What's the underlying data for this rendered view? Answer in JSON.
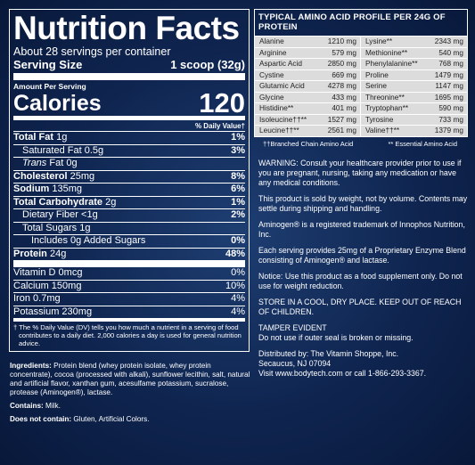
{
  "nutrition": {
    "title": "Nutrition Facts",
    "servings_per_container": "About 28 servings per container",
    "serving_size_label": "Serving Size",
    "serving_size_value": "1 scoop (32g)",
    "amount_per_serving": "Amount Per Serving",
    "calories_label": "Calories",
    "calories_value": "120",
    "dv_header": "% Daily Value†",
    "rows": [
      {
        "label": "Total Fat",
        "amount": "1g",
        "pct": "1%"
      },
      {
        "label": "Saturated Fat",
        "amount": "0.5g",
        "pct": "3%"
      },
      {
        "label": "Trans",
        "amount": "Fat 0g",
        "pct": ""
      },
      {
        "label": "Cholesterol",
        "amount": "25mg",
        "pct": "8%"
      },
      {
        "label": "Sodium",
        "amount": "135mg",
        "pct": "6%"
      },
      {
        "label": "Total Carbohydrate",
        "amount": "2g",
        "pct": "1%"
      },
      {
        "label": "Dietary Fiber",
        "amount": "<1g",
        "pct": "2%"
      },
      {
        "label": "Total Sugars",
        "amount": "1g",
        "pct": ""
      },
      {
        "label": "Includes 0g Added Sugars",
        "amount": "",
        "pct": "0%"
      },
      {
        "label": "Protein",
        "amount": "24g",
        "pct": "48%"
      },
      {
        "label": "Vitamin D",
        "amount": "0mcg",
        "pct": "0%"
      },
      {
        "label": "Calcium",
        "amount": "150mg",
        "pct": "10%"
      },
      {
        "label": "Iron",
        "amount": "0.7mg",
        "pct": "4%"
      },
      {
        "label": "Potassium",
        "amount": "230mg",
        "pct": "4%"
      }
    ],
    "footnote": "† The % Daily Value (DV) tells you how much a nutrient in a serving of food contributes to a daily diet. 2,000 calories a day is used for general nutrition advice."
  },
  "ingredients": {
    "label": "Ingredients:",
    "text": "Protein blend (whey protein isolate, whey protein concentrate), cocoa (processed with alkali), sunflower lecithin, salt, natural and artificial flavor, xanthan gum, acesulfame potassium, sucralose, protease (Aminogen®), lactase.",
    "contains_label": "Contains:",
    "contains_text": "Milk.",
    "not_contain_label": "Does not contain:",
    "not_contain_text": "Gluten, Artificial Colors."
  },
  "amino": {
    "title": "TYPICAL AMINO ACID PROFILE PER 24G OF PROTEIN",
    "rows": [
      [
        {
          "name": "Alanine",
          "value": "1210 mg"
        },
        {
          "name": "Lysine**",
          "value": "2343 mg"
        }
      ],
      [
        {
          "name": "Arginine",
          "value": "579 mg"
        },
        {
          "name": "Methionine**",
          "value": "540 mg"
        }
      ],
      [
        {
          "name": "Aspartic Acid",
          "value": "2850 mg"
        },
        {
          "name": "Phenylalanine**",
          "value": "768 mg"
        }
      ],
      [
        {
          "name": "Cystine",
          "value": "669 mg"
        },
        {
          "name": "Proline",
          "value": "1479 mg"
        }
      ],
      [
        {
          "name": "Glutamic Acid",
          "value": "4278 mg"
        },
        {
          "name": "Serine",
          "value": "1147 mg"
        }
      ],
      [
        {
          "name": "Glycine",
          "value": "433 mg"
        },
        {
          "name": "Threonine**",
          "value": "1695 mg"
        }
      ],
      [
        {
          "name": "Histidine**",
          "value": "401 mg"
        },
        {
          "name": "Tryptophan**",
          "value": "590 mg"
        }
      ],
      [
        {
          "name": "Isoleucine††**",
          "value": "1527 mg"
        },
        {
          "name": "Tyrosine",
          "value": "733 mg"
        }
      ],
      [
        {
          "name": "Leucine††**",
          "value": "2561 mg"
        },
        {
          "name": "Valine††**",
          "value": "1379 mg"
        }
      ]
    ],
    "note_bcaa": "††Branched Chain Amino Acid",
    "note_eaa": "** Essential Amino Acid"
  },
  "warnings": {
    "warning": "WARNING: Consult your healthcare provider prior to use if you are pregnant, nursing, taking any medication or have any medical conditions.",
    "weight": "This product is sold by weight, not by volume. Contents may settle during shipping and handling.",
    "trademark": "Aminogen® is a registered trademark of Innophos Nutrition, Inc.",
    "enzyme": "Each serving provides 25mg of a Proprietary Enzyme Blend consisting of Aminogen® and lactase.",
    "notice": "Notice: Use this product as a food supplement only. Do not use for weight reduction.",
    "store": "STORE IN A COOL, DRY PLACE. KEEP OUT OF REACH OF CHILDREN.",
    "tamper_title": "TAMPER EVIDENT",
    "tamper_text": "Do not use if outer seal is broken or missing.",
    "dist_1": "Distributed by: The Vitamin Shoppe, Inc.",
    "dist_2": "Secaucus, NJ 07094",
    "dist_3": "Visit www.bodytech.com or call 1-866-293-3367."
  }
}
